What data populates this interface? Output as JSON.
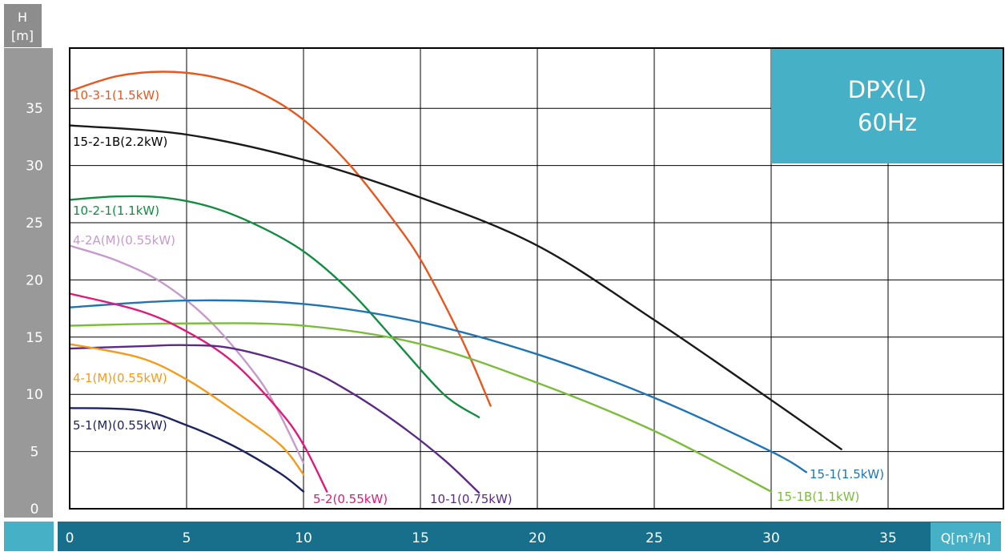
{
  "chart_data": {
    "type": "line",
    "title": "DPX(L)",
    "subtitle": "60Hz",
    "ylabel_line1": "H",
    "ylabel_line2": "[m]",
    "xlabel": "Q[m³/h]",
    "xlim": [
      0,
      40
    ],
    "ylim": [
      0,
      40
    ],
    "x_ticks": [
      0,
      5,
      10,
      15,
      20,
      25,
      30,
      35
    ],
    "y_ticks": [
      0,
      5,
      10,
      15,
      20,
      25,
      30,
      35
    ],
    "grid": true,
    "colors": {
      "axis_band_y": "#999999",
      "axis_band_x": "#176f8c",
      "corner": "#46b0c7",
      "title_box": "#46b0c7",
      "grid": "#000000"
    },
    "series": [
      {
        "name": "10-3-1(1.5kW)",
        "color": "#e8571e",
        "x": [
          0,
          2,
          4,
          6,
          8,
          10,
          12,
          14,
          15,
          16,
          17,
          18
        ],
        "y": [
          36.5,
          37.8,
          38.2,
          37.8,
          36.5,
          34,
          30,
          24.8,
          21.8,
          18,
          13.8,
          9
        ]
      },
      {
        "name": "15-2-1B(2.2kW)",
        "color": "#1a1a1a",
        "x": [
          0,
          5,
          10,
          15,
          20,
          25,
          30,
          33
        ],
        "y": [
          33.5,
          32.7,
          30.5,
          27.2,
          23,
          16.5,
          9.5,
          5.2
        ]
      },
      {
        "name": "10-2-1(1.1kW)",
        "color": "#138c42",
        "x": [
          0,
          2,
          4,
          6,
          8,
          10,
          12,
          14,
          16,
          17.5
        ],
        "y": [
          27,
          27.3,
          27.2,
          26.4,
          24.8,
          22.5,
          19,
          14.5,
          10,
          8
        ]
      },
      {
        "name": "4-2A(M)(0.55kW)",
        "color": "#c69bcb",
        "x": [
          0,
          2,
          4,
          6,
          8,
          9,
          10
        ],
        "y": [
          23,
          21.7,
          19.7,
          16.4,
          11.6,
          8.2,
          4
        ]
      },
      {
        "name": "15-1(1.5kW)",
        "color": "#1f74b4",
        "x": [
          0,
          5,
          10,
          15,
          20,
          25,
          30,
          31.5
        ],
        "y": [
          17.6,
          18.2,
          17.9,
          16.3,
          13.5,
          9.7,
          5,
          3.2
        ]
      },
      {
        "name": "15-1B(1.1kW)",
        "color": "#7cbc3c",
        "x": [
          0,
          5,
          10,
          15,
          20,
          25,
          30
        ],
        "y": [
          16,
          16.2,
          16,
          14.4,
          11,
          6.8,
          1.5
        ]
      },
      {
        "name": "5-2(0.55kW)",
        "color": "#e0197a",
        "x": [
          0,
          3,
          5,
          7,
          9,
          10,
          11
        ],
        "y": [
          18.8,
          17.3,
          15.5,
          12.8,
          8.5,
          5.6,
          1.5
        ]
      },
      {
        "name": "10-1(0.75kW)",
        "color": "#5b2a86",
        "x": [
          0,
          3,
          5,
          7,
          10,
          12,
          14,
          16,
          17.5
        ],
        "y": [
          14,
          14.2,
          14.3,
          14,
          12.3,
          10.2,
          7.5,
          4.3,
          1.4
        ]
      },
      {
        "name": "4-1(M)(0.55kW)",
        "color": "#f39b1c",
        "x": [
          0,
          3,
          5,
          7,
          9,
          10
        ],
        "y": [
          14.4,
          13.2,
          11.3,
          8.6,
          5.6,
          3
        ]
      },
      {
        "name": "5-1(M)(0.55kW)",
        "color": "#1e2460",
        "x": [
          0,
          3,
          5,
          7,
          9,
          10
        ],
        "y": [
          8.8,
          8.6,
          7.3,
          5.5,
          3.1,
          1.5
        ]
      }
    ]
  }
}
